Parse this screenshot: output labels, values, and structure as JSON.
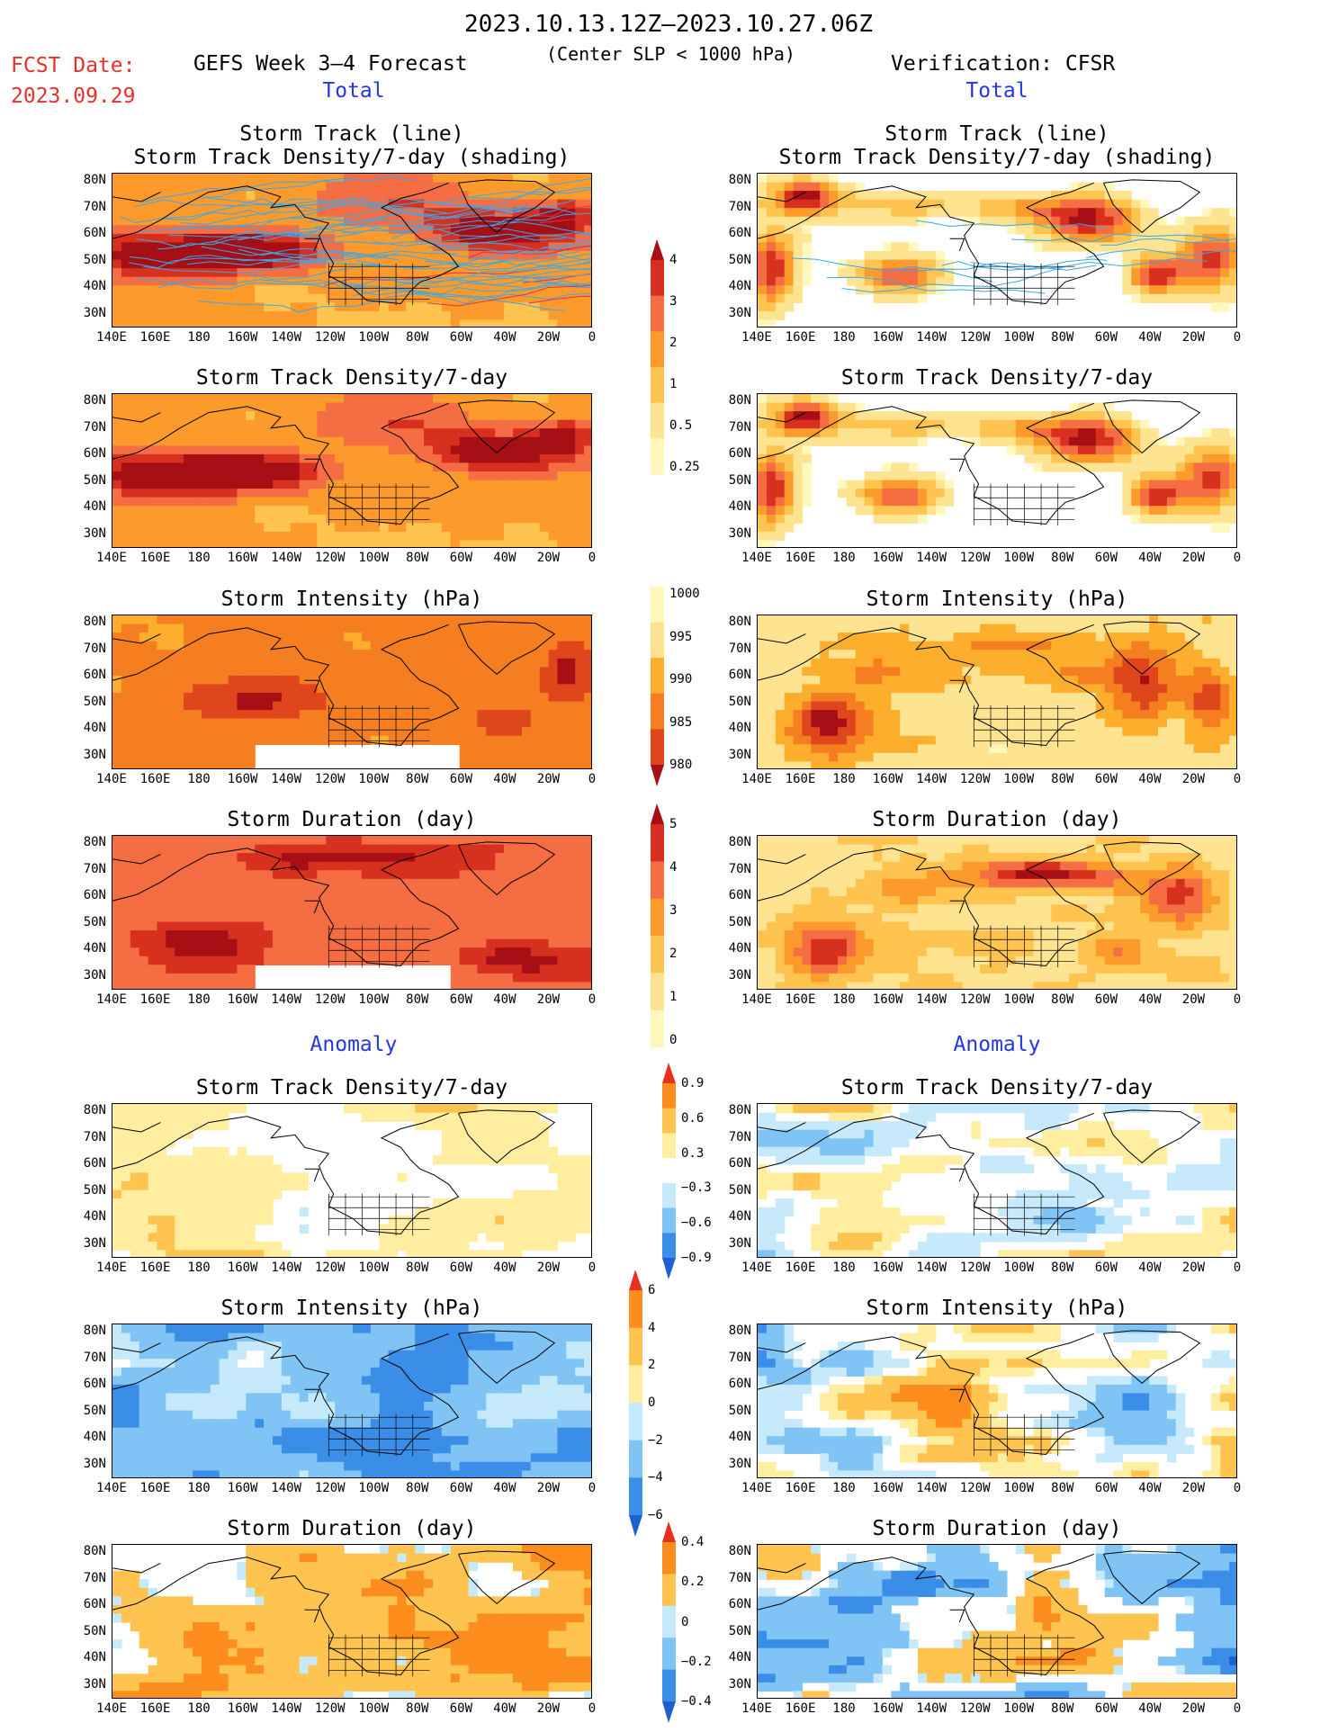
{
  "header": {
    "period": "2023.10.13.12Z–2023.10.27.06Z",
    "fcst_label": "FCST Date:",
    "fcst_date": "2023.09.29",
    "left_title": "GEFS Week 3–4 Forecast",
    "subtitle": "(Center SLP < 1000 hPa)",
    "right_title": "Verification: CFSR",
    "total_label": "Total",
    "anomaly_label": "Anomaly"
  },
  "panel_titles": {
    "track": [
      "Storm Track (line)",
      "Storm Track Density/7-day (shading)"
    ],
    "density": "Storm Track Density/7-day",
    "intensity": "Storm Intensity (hPa)",
    "duration": "Storm Duration (day)"
  },
  "axes": {
    "lat_labels": [
      "80N",
      "70N",
      "60N",
      "50N",
      "40N",
      "30N"
    ],
    "lon_labels": [
      "140E",
      "160E",
      "180",
      "160W",
      "140W",
      "120W",
      "100W",
      "80W",
      "60W",
      "40W",
      "20W",
      "0"
    ]
  },
  "colorbars": {
    "density_total": {
      "labels": [
        "4",
        "3",
        "2",
        "1",
        "0.5",
        "0.25"
      ],
      "colors": [
        "#a50f15",
        "#d7301f",
        "#f46d43",
        "#fd9a2c",
        "#fec44f",
        "#fee391",
        "#fff7bc"
      ]
    },
    "intensity_total": {
      "labels": [
        "1000",
        "995",
        "990",
        "985",
        "980"
      ],
      "colors": [
        "#fff7bc",
        "#fee391",
        "#fdae2c",
        "#f57f20",
        "#e0461c",
        "#a50f15"
      ]
    },
    "duration_total": {
      "labels": [
        "5",
        "4",
        "3",
        "2",
        "1",
        "0"
      ],
      "colors": [
        "#a50f15",
        "#d7301f",
        "#f46d43",
        "#fd9a2c",
        "#fec44f",
        "#fee391",
        "#fff7bc"
      ]
    },
    "density_anom": {
      "labels": [
        "0.9",
        "0.6",
        "0.3",
        "−0.3",
        "−0.6",
        "−0.9"
      ],
      "colors": [
        "#e8301c",
        "#fd8d1c",
        "#fec44f",
        "#ffeda0",
        "#ffffff",
        "#c6e9fb",
        "#80c4f5",
        "#3b8ee8",
        "#1f5fcf"
      ]
    },
    "intensity_anom": {
      "labels": [
        "6",
        "4",
        "2",
        "0",
        "−2",
        "−4",
        "−6"
      ],
      "colors": [
        "#e8301c",
        "#fd8d1c",
        "#fec44f",
        "#ffeda0",
        "#c6e9fb",
        "#80c4f5",
        "#3b8ee8",
        "#1f5fcf"
      ]
    },
    "duration_anom": {
      "labels": [
        "0.4",
        "0.2",
        "0",
        "−0.2",
        "−0.4"
      ],
      "colors": [
        "#e8301c",
        "#fd8d1c",
        "#fec44f",
        "#c6e9fb",
        "#80c4f5",
        "#3b8ee8",
        "#1f5fcf"
      ]
    }
  },
  "chart_data": [
    {
      "type": "heatmap",
      "title": "Storm Track (line) / Storm Track Density/7-day (shading)",
      "column": "GEFS Week 3–4 Forecast",
      "section": "Total",
      "lat_range": [
        25,
        85
      ],
      "lon_range": [
        "140E",
        "0"
      ],
      "colorbar": [
        0.25,
        0.5,
        1,
        2,
        3,
        4
      ],
      "tracks": true
    },
    {
      "type": "heatmap",
      "title": "Storm Track (line) / Storm Track Density/7-day (shading)",
      "column": "Verification: CFSR",
      "section": "Total",
      "lat_range": [
        25,
        85
      ],
      "lon_range": [
        "140E",
        "0"
      ],
      "colorbar": [
        0.25,
        0.5,
        1,
        2,
        3,
        4
      ],
      "tracks": true
    },
    {
      "type": "heatmap",
      "title": "Storm Track Density/7-day",
      "column": "GEFS Week 3–4 Forecast",
      "section": "Total",
      "colorbar": [
        0.25,
        0.5,
        1,
        2,
        3,
        4
      ]
    },
    {
      "type": "heatmap",
      "title": "Storm Track Density/7-day",
      "column": "Verification: CFSR",
      "section": "Total",
      "colorbar": [
        0.25,
        0.5,
        1,
        2,
        3,
        4
      ]
    },
    {
      "type": "heatmap",
      "title": "Storm Intensity (hPa)",
      "column": "GEFS Week 3–4 Forecast",
      "section": "Total",
      "colorbar": [
        1000,
        995,
        990,
        985,
        980
      ]
    },
    {
      "type": "heatmap",
      "title": "Storm Intensity (hPa)",
      "column": "Verification: CFSR",
      "section": "Total",
      "colorbar": [
        1000,
        995,
        990,
        985,
        980
      ]
    },
    {
      "type": "heatmap",
      "title": "Storm Duration (day)",
      "column": "GEFS Week 3–4 Forecast",
      "section": "Total",
      "colorbar": [
        0,
        1,
        2,
        3,
        4,
        5
      ]
    },
    {
      "type": "heatmap",
      "title": "Storm Duration (day)",
      "column": "Verification: CFSR",
      "section": "Total",
      "colorbar": [
        0,
        1,
        2,
        3,
        4,
        5
      ]
    },
    {
      "type": "heatmap",
      "title": "Storm Track Density/7-day",
      "column": "GEFS Week 3–4 Forecast",
      "section": "Anomaly",
      "colorbar": [
        -0.9,
        -0.6,
        -0.3,
        0.3,
        0.6,
        0.9
      ]
    },
    {
      "type": "heatmap",
      "title": "Storm Track Density/7-day",
      "column": "Verification: CFSR",
      "section": "Anomaly",
      "colorbar": [
        -0.9,
        -0.6,
        -0.3,
        0.3,
        0.6,
        0.9
      ]
    },
    {
      "type": "heatmap",
      "title": "Storm Intensity (hPa)",
      "column": "GEFS Week 3–4 Forecast",
      "section": "Anomaly",
      "colorbar": [
        -6,
        -4,
        -2,
        0,
        2,
        4,
        6
      ]
    },
    {
      "type": "heatmap",
      "title": "Storm Intensity (hPa)",
      "column": "Verification: CFSR",
      "section": "Anomaly",
      "colorbar": [
        -6,
        -4,
        -2,
        0,
        2,
        4,
        6
      ]
    },
    {
      "type": "heatmap",
      "title": "Storm Duration (day)",
      "column": "GEFS Week 3–4 Forecast",
      "section": "Anomaly",
      "colorbar": [
        -0.4,
        -0.2,
        0,
        0.2,
        0.4
      ]
    },
    {
      "type": "heatmap",
      "title": "Storm Duration (day)",
      "column": "Verification: CFSR",
      "section": "Anomaly",
      "colorbar": [
        -0.4,
        -0.2,
        0,
        0.2,
        0.4
      ]
    }
  ]
}
